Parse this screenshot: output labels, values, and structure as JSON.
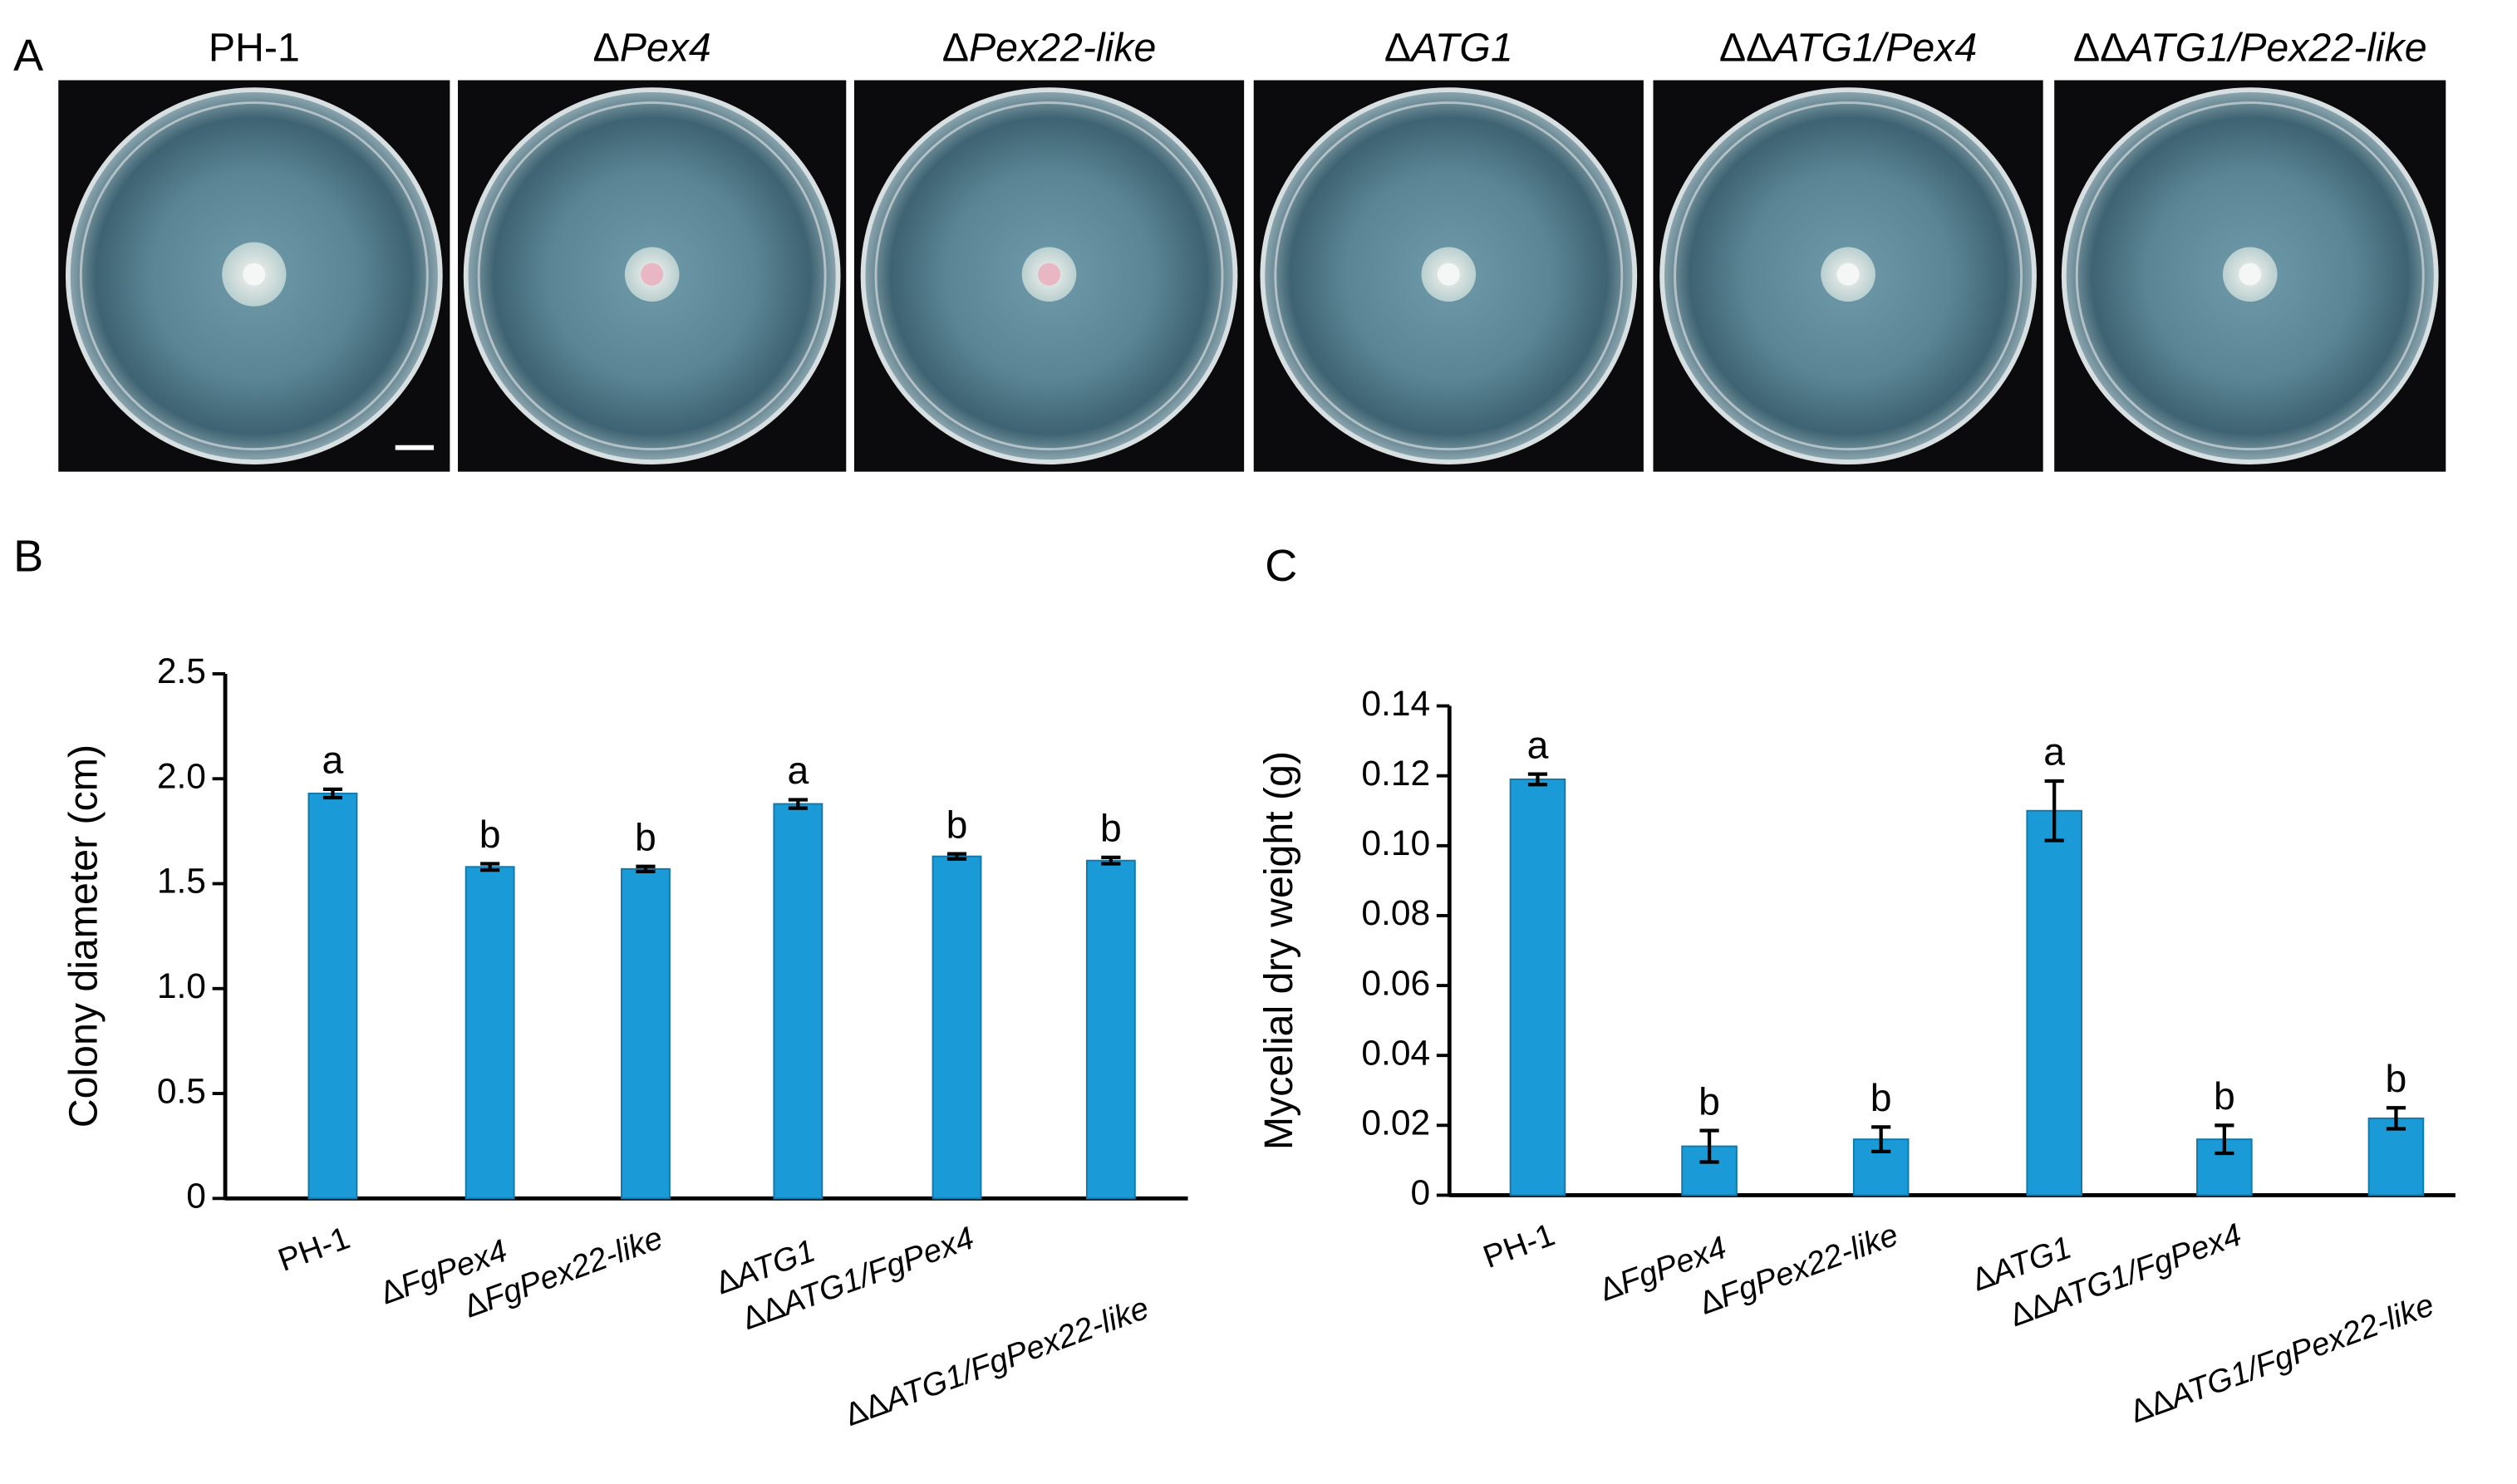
{
  "panel_a": {
    "label": "A",
    "plates": [
      "PH-1",
      "ΔPex4",
      "ΔPex22-like",
      "ΔATG1",
      "ΔΔATG1/Pex4",
      "ΔΔATG1/Pex22-like"
    ]
  },
  "chart_data": [
    {
      "type": "bar",
      "panel_label": "B",
      "ylabel": "Colony diameter (cm)",
      "categories": [
        "PH-1",
        "ΔFgPex4",
        "ΔFgPex22-like",
        "ΔATG1",
        "ΔΔATG1/FgPex4",
        "ΔΔATG1/FgPex22-like"
      ],
      "values": [
        1.93,
        1.58,
        1.57,
        1.88,
        1.63,
        1.61
      ],
      "errors": [
        0.02,
        0.015,
        0.012,
        0.02,
        0.012,
        0.015
      ],
      "significance": [
        "a",
        "b",
        "b",
        "a",
        "b",
        "b"
      ],
      "color": "#1a9bd7",
      "ylim": [
        0,
        2.5
      ],
      "yticks": [
        0,
        0.5,
        {
          "value": 1,
          "label": "1.0"
        },
        1.5,
        {
          "value": 2,
          "label": "2.0"
        },
        2.5
      ]
    },
    {
      "type": "bar",
      "panel_label": "C",
      "ylabel": "Mycelial dry weight (g)",
      "categories": [
        "PH-1",
        "ΔFgPex4",
        "ΔFgPex22-like",
        "ΔATG1",
        "ΔΔATG1/FgPex4",
        "ΔΔATG1/FgPex22-like"
      ],
      "values": [
        0.119,
        0.014,
        0.016,
        0.11,
        0.016,
        0.022
      ],
      "errors": [
        0.0015,
        0.0045,
        0.0035,
        0.0085,
        0.004,
        0.003
      ],
      "significance": [
        "a",
        "b",
        "b",
        "a",
        "b",
        "b"
      ],
      "color": "#1a9bd7",
      "ylim": [
        0,
        0.14
      ],
      "yticks": [
        0,
        0.02,
        0.04,
        0.06,
        0.08,
        {
          "value": 0.1,
          "label": "0.10"
        },
        0.12,
        0.14
      ]
    }
  ]
}
